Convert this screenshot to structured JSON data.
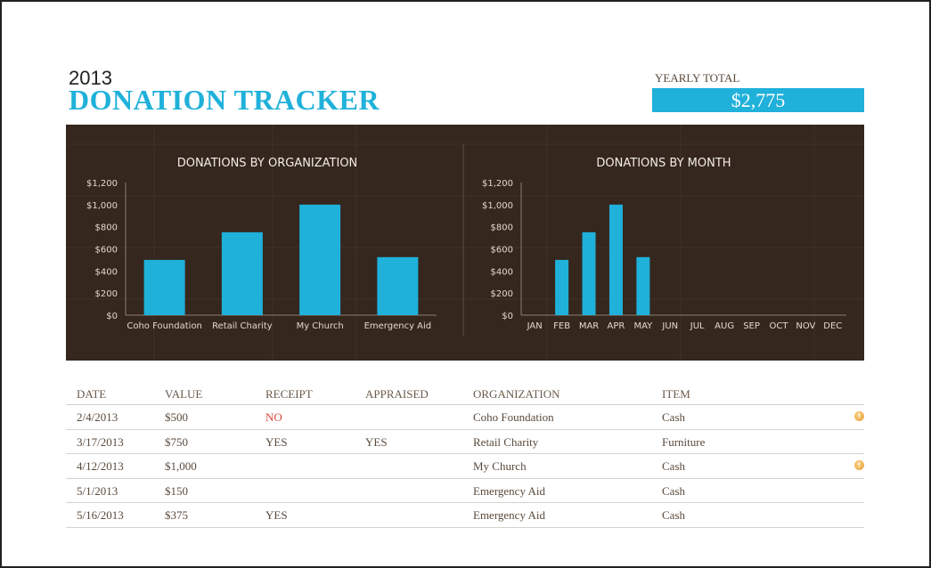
{
  "header": {
    "year": "2013",
    "title": "DONATION TRACKER",
    "yearly_total_label": "YEARLY TOTAL",
    "yearly_total_value": "$2,775"
  },
  "colors": {
    "accent": "#1fb1da",
    "panel": "#35271e",
    "warning": "#e49a2f",
    "no": "#d9473b"
  },
  "chart_data": [
    {
      "type": "bar",
      "title": "DONATIONS BY ORGANIZATION",
      "categories": [
        "Coho Foundation",
        "Retail Charity",
        "My Church",
        "Emergency Aid"
      ],
      "values": [
        500,
        750,
        1000,
        525
      ],
      "ylim": [
        0,
        1200
      ],
      "yticks": [
        "$0",
        "$200",
        "$400",
        "$600",
        "$800",
        "$1,000",
        "$1,200"
      ],
      "ytick_values": [
        0,
        200,
        400,
        600,
        800,
        1000,
        1200
      ]
    },
    {
      "type": "bar",
      "title": "DONATIONS BY MONTH",
      "categories": [
        "JAN",
        "FEB",
        "MAR",
        "APR",
        "MAY",
        "JUN",
        "JUL",
        "AUG",
        "SEP",
        "OCT",
        "NOV",
        "DEC"
      ],
      "values": [
        0,
        500,
        750,
        1000,
        525,
        0,
        0,
        0,
        0,
        0,
        0,
        0
      ],
      "ylim": [
        0,
        1200
      ],
      "yticks": [
        "$0",
        "$200",
        "$400",
        "$600",
        "$800",
        "$1,000",
        "$1,200"
      ],
      "ytick_values": [
        0,
        200,
        400,
        600,
        800,
        1000,
        1200
      ]
    }
  ],
  "table": {
    "headers": [
      "DATE",
      "VALUE",
      "RECEIPT",
      "APPRAISED",
      "ORGANIZATION",
      "ITEM"
    ],
    "rows": [
      {
        "cells": [
          "2/4/2013",
          "$500",
          "NO",
          "",
          "Coho Foundation",
          "Cash"
        ],
        "flag": "warning-icon"
      },
      {
        "cells": [
          "3/17/2013",
          "$750",
          "YES",
          "YES",
          "Retail Charity",
          "Furniture"
        ],
        "flag": ""
      },
      {
        "cells": [
          "4/12/2013",
          "$1,000",
          "",
          "",
          "My Church",
          "Cash"
        ],
        "flag": "warning-icon"
      },
      {
        "cells": [
          "5/1/2013",
          "$150",
          "",
          "",
          "Emergency Aid",
          "Cash"
        ],
        "flag": ""
      },
      {
        "cells": [
          "5/16/2013",
          "$375",
          "YES",
          "",
          "Emergency Aid",
          "Cash"
        ],
        "flag": ""
      }
    ]
  }
}
